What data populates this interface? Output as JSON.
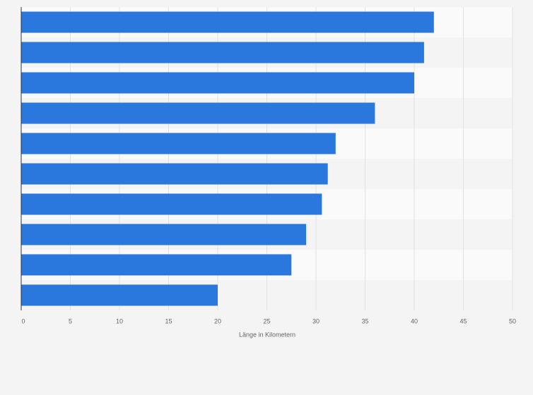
{
  "chart_data": {
    "type": "hbar",
    "x_label": "Länge in Kilometern",
    "categories": [
      null,
      null,
      null,
      null,
      null,
      null,
      null,
      null,
      null,
      null
    ],
    "values": [
      42,
      41,
      40,
      36,
      32,
      31.2,
      30.6,
      29,
      27.5,
      20
    ],
    "color": "#2a77dd",
    "xlim": [
      0,
      50
    ],
    "xticks": [
      0,
      5,
      10,
      15,
      20,
      25,
      30,
      35,
      40,
      45,
      50
    ],
    "grid": true
  }
}
